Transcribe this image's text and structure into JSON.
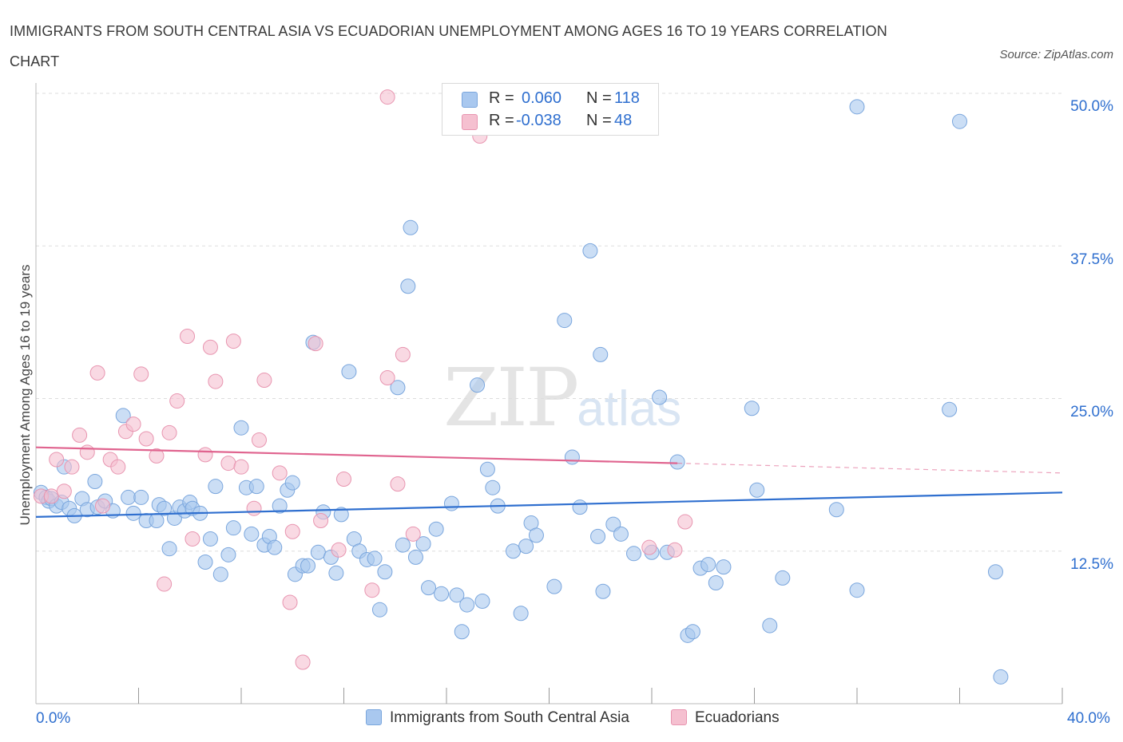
{
  "title": "IMMIGRANTS FROM SOUTH CENTRAL ASIA VS ECUADORIAN UNEMPLOYMENT AMONG AGES 16 TO 19 YEARS CORRELATION CHART",
  "source": "Source: ZipAtlas.com",
  "watermark": {
    "zip": "ZIP",
    "atlas": "atlas"
  },
  "legend": {
    "rows": [
      {
        "r_label": "R =",
        "r_value": "0.060",
        "n_label": "N =",
        "n_value": "118"
      },
      {
        "r_label": "R =",
        "r_value": "-0.038",
        "n_label": "N =",
        "n_value": "48"
      }
    ]
  },
  "bottom_legend": [
    {
      "name": "Immigrants from South Central Asia"
    },
    {
      "name": "Ecuadorians"
    }
  ],
  "colors": {
    "blue_fill": "#a9c8ef",
    "blue_stroke": "#7aa6dd",
    "blue_line": "#2f6fcf",
    "pink_fill": "#f5c0d0",
    "pink_stroke": "#e895b0",
    "pink_line": "#e0648f",
    "grid": "#dddddd",
    "tick_label": "#2f6fcf"
  },
  "chart_data": {
    "type": "scatter",
    "title": "IMMIGRANTS FROM SOUTH CENTRAL ASIA VS ECUADORIAN UNEMPLOYMENT AMONG AGES 16 TO 19 YEARS CORRELATION CHART",
    "xlabel": "",
    "ylabel": "Unemployment Among Ages 16 to 19 years",
    "x_tick_labels": [
      "0.0%",
      "40.0%"
    ],
    "y_tick_labels": [
      "12.5%",
      "25.0%",
      "37.5%",
      "50.0%"
    ],
    "y_ticks": [
      12.5,
      25.0,
      37.5,
      50.0
    ],
    "xlim": [
      0,
      40
    ],
    "ylim": [
      0,
      50
    ],
    "grid": true,
    "legend_position": "top-center",
    "series": [
      {
        "name": "Immigrants from South Central Asia",
        "trend": {
          "x": [
            0,
            40
          ],
          "y": [
            15.3,
            17.3
          ]
        },
        "points": [
          [
            0.2,
            17.3
          ],
          [
            0.4,
            16.9
          ],
          [
            0.5,
            16.6
          ],
          [
            0.6,
            16.8
          ],
          [
            0.8,
            16.2
          ],
          [
            1.0,
            16.5
          ],
          [
            1.1,
            19.4
          ],
          [
            1.3,
            16.0
          ],
          [
            1.5,
            15.4
          ],
          [
            1.8,
            16.8
          ],
          [
            2.0,
            15.9
          ],
          [
            2.3,
            18.2
          ],
          [
            2.4,
            16.1
          ],
          [
            2.7,
            16.6
          ],
          [
            3.0,
            15.8
          ],
          [
            3.4,
            23.6
          ],
          [
            3.6,
            16.9
          ],
          [
            3.8,
            15.6
          ],
          [
            4.1,
            16.9
          ],
          [
            4.3,
            15.0
          ],
          [
            4.7,
            15.0
          ],
          [
            4.8,
            16.3
          ],
          [
            5.0,
            16.0
          ],
          [
            5.2,
            12.7
          ],
          [
            5.4,
            15.2
          ],
          [
            5.6,
            16.1
          ],
          [
            5.8,
            15.8
          ],
          [
            6.0,
            16.5
          ],
          [
            6.1,
            16.0
          ],
          [
            6.4,
            15.6
          ],
          [
            6.6,
            11.6
          ],
          [
            6.8,
            13.5
          ],
          [
            7.0,
            17.8
          ],
          [
            7.2,
            10.6
          ],
          [
            7.5,
            12.2
          ],
          [
            7.7,
            14.4
          ],
          [
            8.0,
            22.6
          ],
          [
            8.2,
            17.7
          ],
          [
            8.4,
            13.9
          ],
          [
            8.6,
            17.8
          ],
          [
            8.9,
            13.0
          ],
          [
            9.1,
            13.7
          ],
          [
            9.3,
            12.8
          ],
          [
            9.5,
            16.2
          ],
          [
            9.8,
            17.5
          ],
          [
            10.0,
            18.1
          ],
          [
            10.1,
            10.6
          ],
          [
            10.4,
            11.3
          ],
          [
            10.6,
            11.3
          ],
          [
            10.8,
            29.6
          ],
          [
            11.0,
            12.4
          ],
          [
            11.2,
            15.7
          ],
          [
            11.5,
            12.0
          ],
          [
            11.7,
            10.7
          ],
          [
            11.9,
            15.5
          ],
          [
            12.2,
            27.2
          ],
          [
            12.4,
            13.5
          ],
          [
            12.6,
            12.5
          ],
          [
            12.9,
            11.8
          ],
          [
            13.2,
            11.9
          ],
          [
            13.4,
            7.7
          ],
          [
            13.6,
            10.8
          ],
          [
            14.1,
            25.9
          ],
          [
            14.3,
            13.0
          ],
          [
            14.5,
            34.2
          ],
          [
            14.6,
            39.0
          ],
          [
            14.8,
            12.0
          ],
          [
            15.1,
            13.1
          ],
          [
            15.3,
            9.5
          ],
          [
            15.6,
            14.3
          ],
          [
            15.8,
            9.0
          ],
          [
            16.2,
            16.4
          ],
          [
            16.4,
            8.9
          ],
          [
            16.6,
            5.9
          ],
          [
            16.8,
            8.1
          ],
          [
            17.2,
            26.1
          ],
          [
            17.4,
            8.4
          ],
          [
            17.6,
            19.2
          ],
          [
            17.8,
            17.7
          ],
          [
            18.0,
            16.2
          ],
          [
            18.6,
            12.5
          ],
          [
            18.9,
            7.4
          ],
          [
            19.1,
            12.9
          ],
          [
            19.3,
            14.8
          ],
          [
            19.5,
            13.8
          ],
          [
            20.2,
            9.6
          ],
          [
            20.6,
            31.4
          ],
          [
            20.9,
            20.2
          ],
          [
            21.2,
            16.1
          ],
          [
            21.6,
            37.1
          ],
          [
            21.9,
            13.7
          ],
          [
            22.0,
            28.6
          ],
          [
            22.1,
            9.2
          ],
          [
            22.5,
            14.7
          ],
          [
            22.8,
            13.9
          ],
          [
            23.3,
            12.3
          ],
          [
            24.0,
            12.4
          ],
          [
            24.3,
            25.1
          ],
          [
            24.6,
            12.4
          ],
          [
            25.0,
            19.8
          ],
          [
            25.4,
            5.6
          ],
          [
            25.6,
            5.9
          ],
          [
            25.9,
            11.1
          ],
          [
            26.2,
            11.4
          ],
          [
            26.5,
            9.9
          ],
          [
            26.8,
            11.2
          ],
          [
            27.9,
            24.2
          ],
          [
            28.1,
            17.5
          ],
          [
            28.6,
            6.4
          ],
          [
            29.1,
            10.3
          ],
          [
            31.2,
            15.9
          ],
          [
            32.0,
            9.3
          ],
          [
            32.0,
            48.9
          ],
          [
            35.6,
            24.1
          ],
          [
            36.0,
            47.7
          ],
          [
            37.4,
            10.8
          ],
          [
            37.6,
            2.2
          ]
        ]
      },
      {
        "name": "Ecuadorians",
        "trend": {
          "x": [
            0,
            25
          ],
          "y": [
            21.0,
            19.7
          ]
        },
        "trend_dashed": {
          "x": [
            25,
            40
          ],
          "y": [
            19.7,
            18.9
          ]
        },
        "points": [
          [
            0.2,
            17.0
          ],
          [
            0.6,
            17.0
          ],
          [
            0.8,
            20.0
          ],
          [
            1.1,
            17.4
          ],
          [
            1.4,
            19.4
          ],
          [
            1.7,
            22.0
          ],
          [
            2.0,
            20.6
          ],
          [
            2.4,
            27.1
          ],
          [
            2.6,
            16.2
          ],
          [
            2.9,
            20.0
          ],
          [
            3.2,
            19.4
          ],
          [
            3.5,
            22.3
          ],
          [
            3.8,
            22.9
          ],
          [
            4.1,
            27.0
          ],
          [
            4.3,
            21.7
          ],
          [
            4.7,
            20.3
          ],
          [
            5.0,
            9.8
          ],
          [
            5.2,
            22.2
          ],
          [
            5.5,
            24.8
          ],
          [
            5.9,
            30.1
          ],
          [
            6.1,
            13.5
          ],
          [
            6.6,
            20.4
          ],
          [
            6.8,
            29.2
          ],
          [
            7.0,
            26.4
          ],
          [
            7.5,
            19.7
          ],
          [
            7.7,
            29.7
          ],
          [
            8.0,
            19.4
          ],
          [
            8.5,
            16.0
          ],
          [
            8.7,
            21.6
          ],
          [
            8.9,
            26.5
          ],
          [
            9.5,
            18.9
          ],
          [
            9.9,
            8.3
          ],
          [
            10.0,
            14.1
          ],
          [
            10.4,
            3.4
          ],
          [
            10.9,
            29.5
          ],
          [
            11.1,
            15.0
          ],
          [
            11.8,
            12.6
          ],
          [
            12.0,
            18.4
          ],
          [
            13.1,
            9.3
          ],
          [
            13.7,
            26.7
          ],
          [
            14.1,
            18.0
          ],
          [
            14.3,
            28.6
          ],
          [
            14.7,
            13.9
          ],
          [
            17.3,
            46.5
          ],
          [
            13.7,
            49.7
          ],
          [
            23.9,
            12.8
          ],
          [
            24.9,
            12.6
          ],
          [
            25.3,
            14.9
          ]
        ]
      }
    ]
  },
  "y_axis_label": "Unemployment Among Ages 16 to 19 years"
}
